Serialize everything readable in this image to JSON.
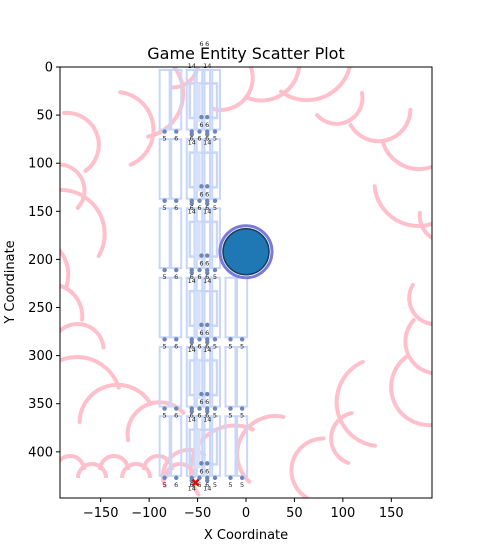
{
  "chart_data": {
    "type": "scatter",
    "title": "Game Entity Scatter Plot",
    "xlabel": "X Coordinate",
    "ylabel": "Y Coordinate",
    "xlim": [
      -192,
      192
    ],
    "ylim": [
      0,
      448
    ],
    "y_inverted": true,
    "grid": false,
    "x_ticks": [
      -150,
      -100,
      -50,
      0,
      50,
      100,
      150
    ],
    "y_ticks": [
      0,
      50,
      100,
      150,
      200,
      250,
      300,
      350,
      400
    ],
    "columns_x": [
      -84,
      -72,
      -56,
      -48,
      -40,
      -32,
      -16,
      -4
    ],
    "row_tops_y": [
      3,
      75,
      147,
      219,
      291,
      363
    ],
    "wide_rows": [
      3,
      4,
      5
    ],
    "inner_labels": [
      "5",
      "6",
      "6",
      "6",
      "14"
    ],
    "top_labels": [
      "6",
      "6",
      "14",
      "14"
    ],
    "entities": {
      "player": {
        "x": 0,
        "y": 192,
        "size": "large",
        "color": "#1f77b4",
        "edge": "#7a7adb"
      },
      "marker": {
        "x": -52,
        "y": 432,
        "shape": "x",
        "color": "#cc1111"
      }
    },
    "background_arcs_color": "#ffc0cb",
    "box_color": "#c8d6f8",
    "dot_color": "#6e86b8"
  }
}
